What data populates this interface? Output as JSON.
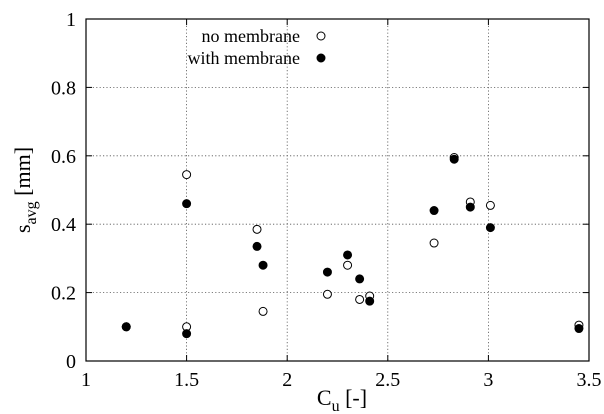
{
  "chart_data": {
    "type": "scatter",
    "xlabel_main": "C",
    "xlabel_sub": "u",
    "xlabel_unit": " [-]",
    "ylabel_main": "s",
    "ylabel_sub": "avg",
    "ylabel_unit": " [mm]",
    "xlim": [
      1,
      3.5
    ],
    "ylim": [
      0,
      1
    ],
    "xticks": [
      1,
      1.5,
      2,
      2.5,
      3,
      3.5
    ],
    "xtick_labels": [
      "1",
      "1.5",
      "2",
      "2.5",
      "3",
      "3.5"
    ],
    "yticks": [
      0,
      0.2,
      0.4,
      0.6,
      0.8,
      1
    ],
    "ytick_labels": [
      "0",
      "0.2",
      "0.4",
      "0.6",
      "0.8",
      "1"
    ],
    "grid": true,
    "legend_position": "top-center",
    "series": [
      {
        "name": "no membrane",
        "marker": "open-circle",
        "color": "#000000",
        "points": [
          [
            1.2,
            0.1
          ],
          [
            1.5,
            0.545
          ],
          [
            1.5,
            0.1
          ],
          [
            1.85,
            0.385
          ],
          [
            1.88,
            0.145
          ],
          [
            2.2,
            0.195
          ],
          [
            2.3,
            0.28
          ],
          [
            2.36,
            0.18
          ],
          [
            2.41,
            0.19
          ],
          [
            2.73,
            0.345
          ],
          [
            2.83,
            0.595
          ],
          [
            2.91,
            0.465
          ],
          [
            3.01,
            0.455
          ],
          [
            3.45,
            0.105
          ]
        ]
      },
      {
        "name": "with membrane",
        "marker": "filled-circle",
        "color": "#000000",
        "points": [
          [
            1.2,
            0.1
          ],
          [
            1.5,
            0.46
          ],
          [
            1.5,
            0.08
          ],
          [
            1.85,
            0.335
          ],
          [
            1.88,
            0.28
          ],
          [
            2.2,
            0.26
          ],
          [
            2.3,
            0.31
          ],
          [
            2.36,
            0.24
          ],
          [
            2.41,
            0.175
          ],
          [
            2.73,
            0.44
          ],
          [
            2.83,
            0.59
          ],
          [
            2.91,
            0.45
          ],
          [
            3.01,
            0.39
          ],
          [
            3.45,
            0.095
          ]
        ]
      }
    ]
  }
}
